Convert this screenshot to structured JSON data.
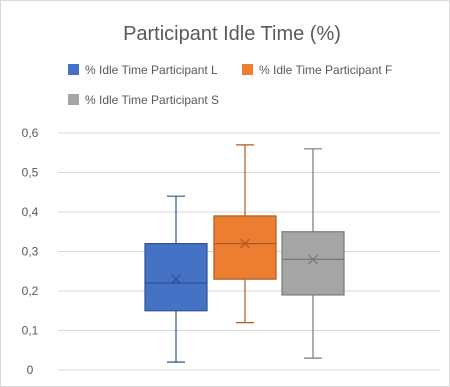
{
  "chart_data": {
    "type": "boxplot",
    "title": "Participant Idle Time (%)",
    "xlabel": "",
    "ylabel": "",
    "ylim": [
      0,
      0.6
    ],
    "yticks": [
      "0",
      "0,1",
      "0,2",
      "0,3",
      "0,4",
      "0,5",
      "0,6"
    ],
    "ytick_values": [
      0,
      0.1,
      0.2,
      0.3,
      0.4,
      0.5,
      0.6
    ],
    "grid": true,
    "legend_position": "top",
    "series": [
      {
        "name": "% Idle Time Participant L",
        "color": "#4472c4",
        "min": 0.02,
        "q1": 0.15,
        "median": 0.22,
        "q3": 0.32,
        "max": 0.44,
        "mean": 0.23
      },
      {
        "name": "% Idle Time Participant F",
        "color": "#ed7d31",
        "min": 0.12,
        "q1": 0.23,
        "median": 0.32,
        "q3": 0.39,
        "max": 0.57,
        "mean": 0.32
      },
      {
        "name": "% Idle Time Participant S",
        "color": "#a5a5a5",
        "min": 0.03,
        "q1": 0.19,
        "median": 0.28,
        "q3": 0.35,
        "max": 0.56,
        "mean": 0.28
      }
    ]
  }
}
